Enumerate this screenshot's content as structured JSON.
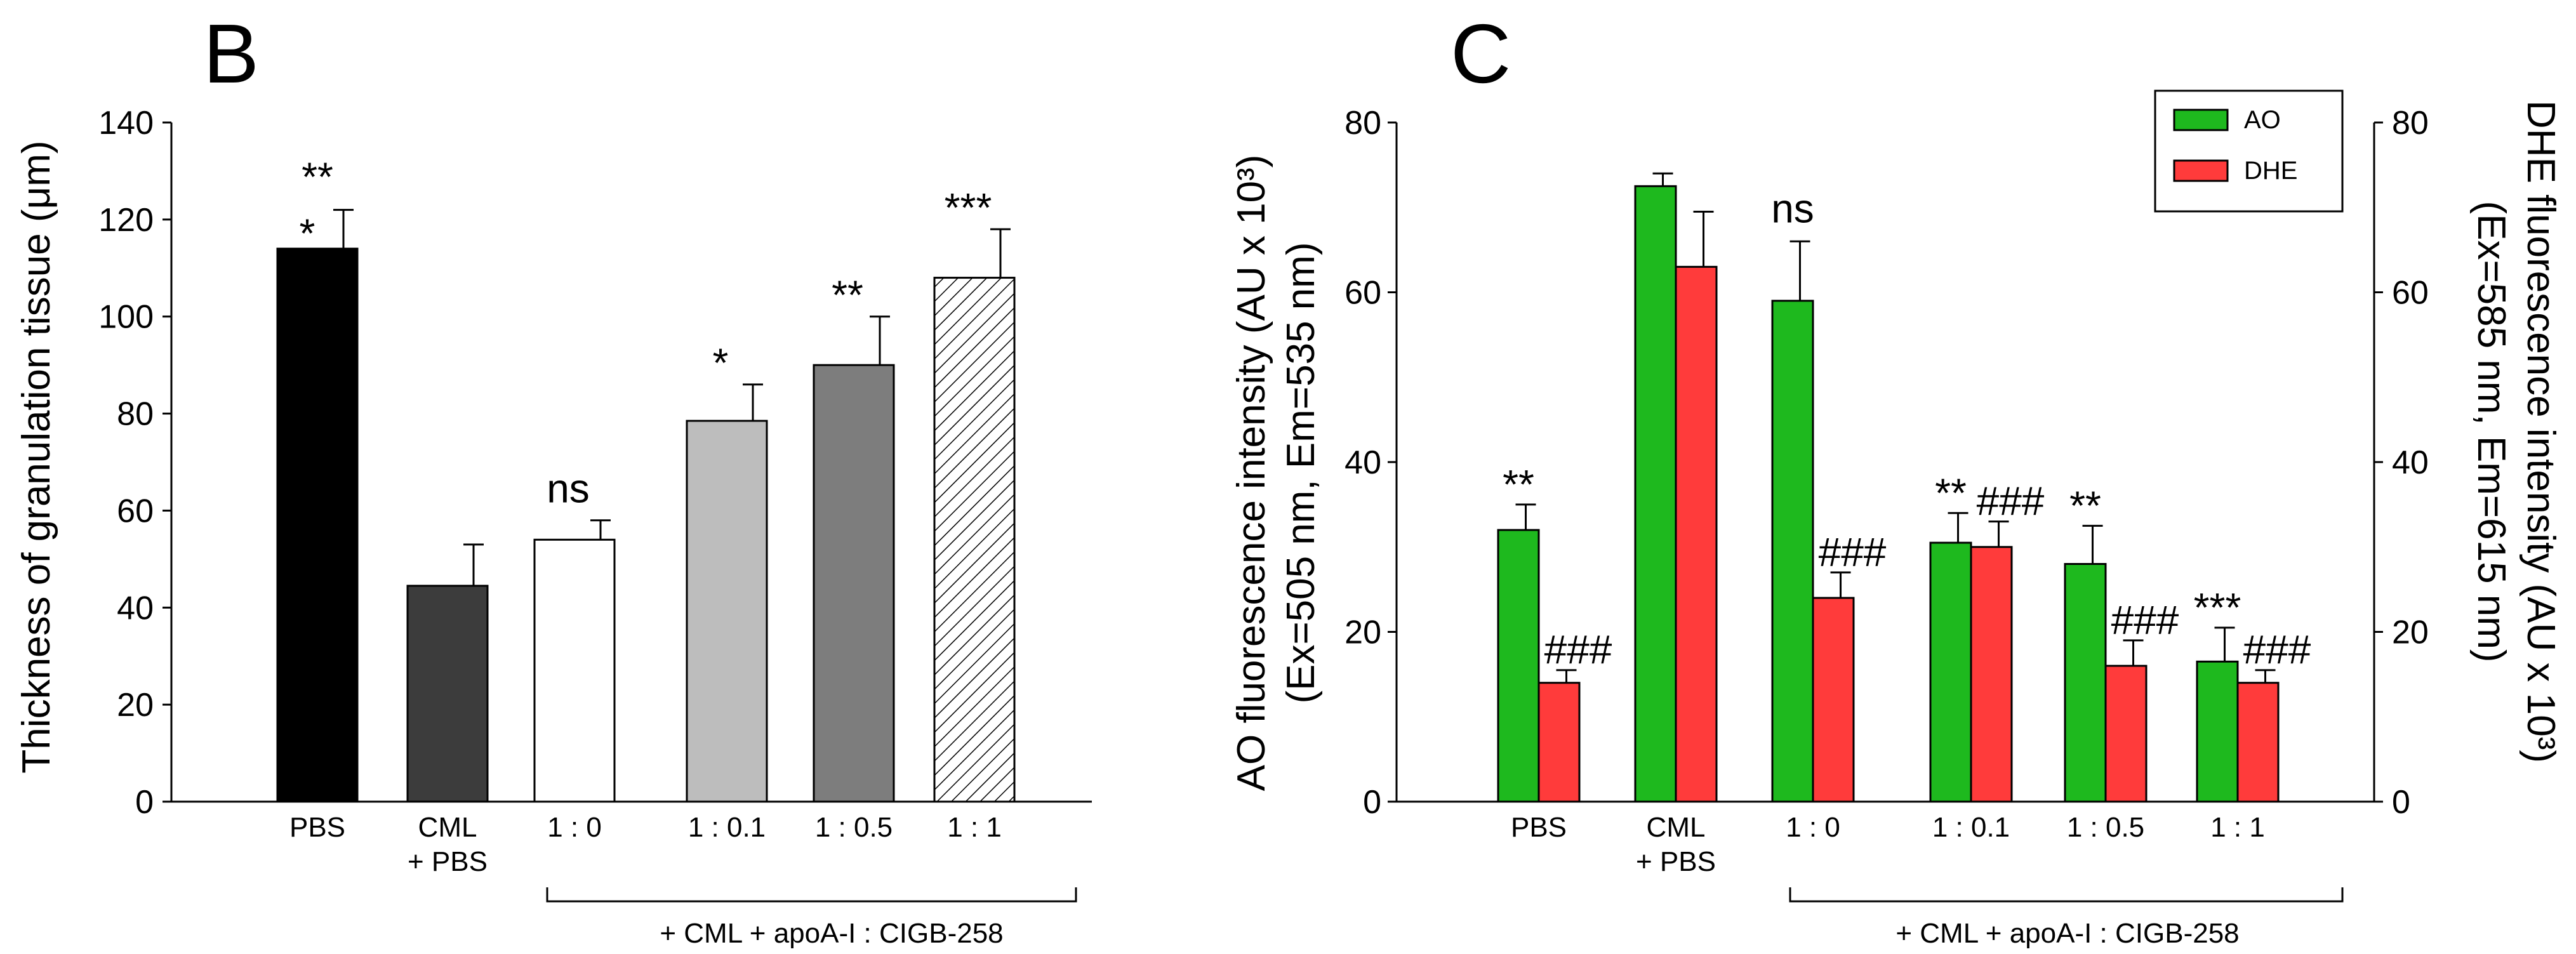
{
  "panels": {
    "B": {
      "letter": "B",
      "ylabel": "Thickness of granulation tissue (μm)",
      "group_label": "+ CML + apoA-I : CIGB-258"
    },
    "C": {
      "letter": "C",
      "ylabel_left_1": "AO fluorescence intensity (AU x 10³)",
      "ylabel_left_2": "(Ex=505 nm, Em=535 nm)",
      "ylabel_right_1": "DHE fluorescence intensity (AU x 10³)",
      "ylabel_right_2": "(Ex=585 nm, Em=615 nm)",
      "group_label": "+ CML + apoA-I : CIGB-258"
    }
  },
  "chart_data": [
    {
      "panel": "B",
      "type": "bar",
      "ylabel": "Thickness of granulation tissue (μm)",
      "ylim": [
        0,
        140
      ],
      "yticks": [
        0,
        20,
        40,
        60,
        80,
        100,
        120,
        140
      ],
      "categories": [
        [
          "PBS"
        ],
        [
          "CML",
          "+ PBS"
        ],
        [
          "1 : 0"
        ],
        [
          "1 : 0.1"
        ],
        [
          "1 : 0.5"
        ],
        [
          "1 : 1"
        ]
      ],
      "values": [
        114,
        44.5,
        54,
        78.5,
        90,
        108
      ],
      "errors": [
        8,
        8.5,
        4,
        7.5,
        10,
        10
      ],
      "annotations": [
        [
          "**",
          "*"
        ],
        [
          ""
        ],
        [
          "ns"
        ],
        [
          "*"
        ],
        [
          "**"
        ],
        [
          "***"
        ]
      ],
      "fills": [
        "#000000",
        "#3c3c3c",
        "#ffffff",
        "#bdbdbd",
        "#7d7d7d",
        "hatch"
      ],
      "group_label": "+ CML + apoA-I : CIGB-258",
      "group_span": [
        "1 : 0",
        "1 : 1"
      ]
    },
    {
      "panel": "C",
      "type": "bar",
      "ylabel_left": "AO fluorescence intensity (AU x 10³) (Ex=505 nm, Em=535 nm)",
      "ylabel_right": "DHE fluorescence intensity (AU x 10³) (Ex=585 nm, Em=615 nm)",
      "ylim": [
        0,
        80
      ],
      "yticks": [
        0,
        20,
        40,
        60,
        80
      ],
      "categories": [
        [
          "PBS"
        ],
        [
          "CML",
          "+ PBS"
        ],
        [
          "1 : 0"
        ],
        [
          "1 : 0.1"
        ],
        [
          "1 : 0.5"
        ],
        [
          "1 : 1"
        ]
      ],
      "series": [
        {
          "name": "AO",
          "color": "#1eb91e",
          "values": [
            32,
            72.5,
            59,
            30.5,
            28,
            16.5
          ],
          "errors": [
            3,
            1.5,
            7,
            3.5,
            4.5,
            4
          ],
          "annotations": [
            "**",
            "",
            "ns",
            "**",
            "**",
            "***"
          ]
        },
        {
          "name": "DHE",
          "color": "#ff3b3b",
          "values": [
            14,
            63,
            24,
            30,
            16,
            14
          ],
          "errors": [
            1.5,
            6.5,
            3,
            3,
            3,
            1.5
          ],
          "annotations": [
            "###",
            "",
            "###",
            "###",
            "###",
            "###"
          ]
        }
      ],
      "legend": "top-right",
      "group_label": "+ CML + apoA-I : CIGB-258",
      "group_span": [
        "1 : 0",
        "1 : 1"
      ]
    }
  ]
}
